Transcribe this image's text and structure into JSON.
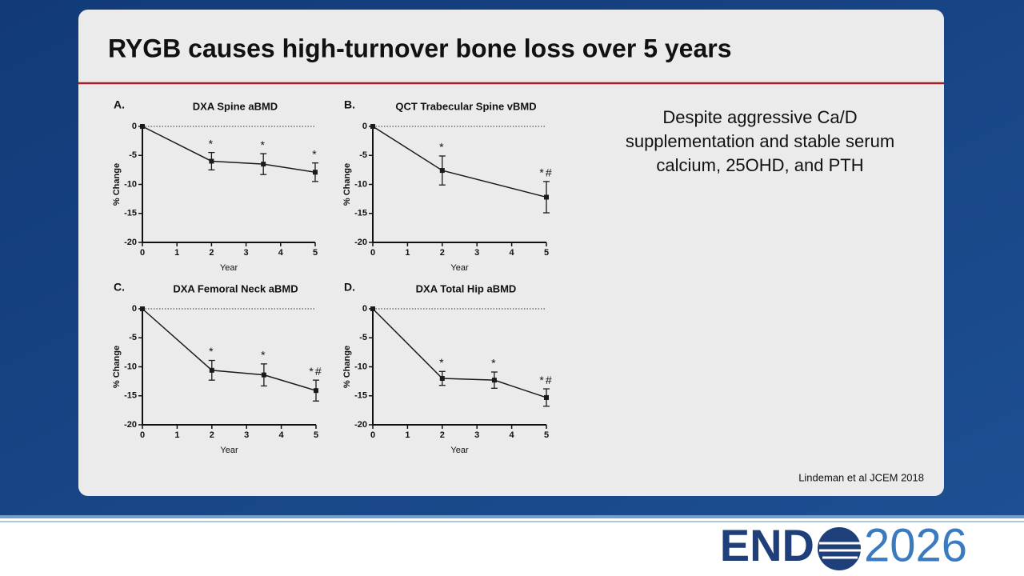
{
  "slide": {
    "title": "RYGB causes high-turnover bone loss over 5 years",
    "note_lines": [
      "Despite aggressive Ca/D",
      "supplementation and stable serum",
      "calcium, 25OHD, and PTH"
    ],
    "citation": "Lindeman et al JCEM 2018",
    "logo": {
      "brand": "END",
      "year": "2026"
    }
  },
  "chart_data": [
    {
      "type": "line",
      "panel": "A.",
      "title": "DXA Spine aBMD",
      "x_label": "Year",
      "y_label": "% Change",
      "x": [
        0,
        2,
        3.5,
        5
      ],
      "values": [
        0,
        -6,
        -6.5,
        -7.9
      ],
      "errors": [
        null,
        1.5,
        1.8,
        1.6
      ],
      "annotations": [
        null,
        "*",
        "*",
        "*"
      ],
      "xlim": [
        0,
        5
      ],
      "ylim": [
        -20,
        0
      ],
      "xticks": [
        0,
        1,
        2,
        3,
        4,
        5
      ],
      "yticks": [
        -20,
        -15,
        -10,
        -5,
        0
      ],
      "color": "#1a1a1a"
    },
    {
      "type": "line",
      "panel": "B.",
      "title": "QCT Trabecular Spine vBMD",
      "x_label": "Year",
      "y_label": "% Change",
      "x": [
        0,
        2,
        5
      ],
      "values": [
        0,
        -7.6,
        -12.2
      ],
      "errors": [
        null,
        2.5,
        2.7
      ],
      "annotations": [
        null,
        "*",
        "*#"
      ],
      "xlim": [
        0,
        5
      ],
      "ylim": [
        -20,
        0
      ],
      "xticks": [
        0,
        1,
        2,
        3,
        4,
        5
      ],
      "yticks": [
        -20,
        -15,
        -10,
        -5,
        0
      ],
      "color": "#1a1a1a"
    },
    {
      "type": "line",
      "panel": "C.",
      "title": "DXA Femoral Neck aBMD",
      "x_label": "Year",
      "y_label": "% Change",
      "x": [
        0,
        2,
        3.5,
        5
      ],
      "values": [
        0,
        -10.6,
        -11.4,
        -14.1
      ],
      "errors": [
        null,
        1.7,
        1.9,
        1.8
      ],
      "annotations": [
        null,
        "*",
        "*",
        "*#"
      ],
      "xlim": [
        0,
        5
      ],
      "ylim": [
        -20,
        0
      ],
      "xticks": [
        0,
        1,
        2,
        3,
        4,
        5
      ],
      "yticks": [
        -20,
        -15,
        -10,
        -5,
        0
      ],
      "color": "#1a1a1a"
    },
    {
      "type": "line",
      "panel": "D.",
      "title": "DXA Total Hip aBMD",
      "x_label": "Year",
      "y_label": "% Change",
      "x": [
        0,
        2,
        3.5,
        5
      ],
      "values": [
        0,
        -12,
        -12.3,
        -15.3
      ],
      "errors": [
        null,
        1.2,
        1.4,
        1.5
      ],
      "annotations": [
        null,
        "*",
        "*",
        "*#"
      ],
      "xlim": [
        0,
        5
      ],
      "ylim": [
        -20,
        0
      ],
      "xticks": [
        0,
        1,
        2,
        3,
        4,
        5
      ],
      "yticks": [
        -20,
        -15,
        -10,
        -5,
        0
      ],
      "color": "#1a1a1a"
    }
  ]
}
